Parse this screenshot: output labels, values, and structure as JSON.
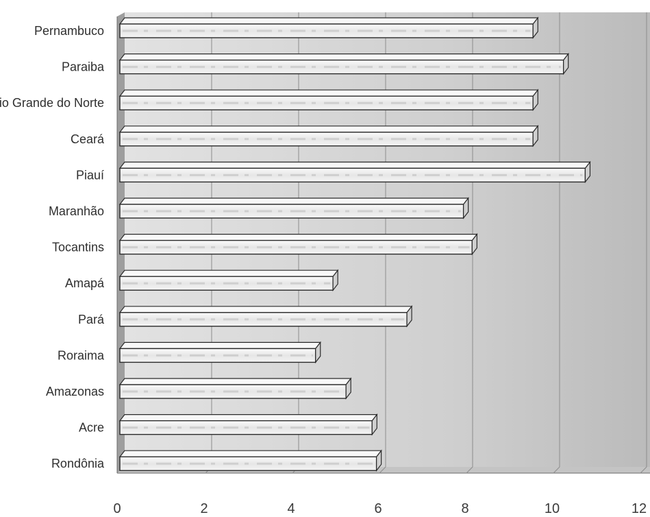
{
  "chart_data": {
    "type": "bar",
    "orientation": "horizontal",
    "style": "3d",
    "title": "",
    "xlabel": "",
    "ylabel": "",
    "xlim": [
      0,
      12
    ],
    "x_ticks": [
      "0",
      "2",
      "4",
      "6",
      "8",
      "10",
      "12"
    ],
    "grid": true,
    "legend": "none",
    "categories": [
      "Pernambuco",
      "Paraiba",
      "Rio Grande do Norte",
      "Ceará",
      "Piauí",
      "Maranhão",
      "Tocantins",
      "Amapá",
      "Pará",
      "Roraima",
      "Amazonas",
      "Acre",
      "Rondônia"
    ],
    "values": [
      9.5,
      10.2,
      9.5,
      9.5,
      10.7,
      7.9,
      8.1,
      4.9,
      6.6,
      4.5,
      5.2,
      5.8,
      5.9
    ],
    "colors": {
      "bar_front": "#efefef",
      "bar_top": "#f8f8f8",
      "bar_side": "#d0d0d0",
      "bar_edge": "#2a2a2a",
      "wall_light": "#d6d6d6",
      "wall_dark": "#b8b8b8",
      "gridline": "#8c8c8c",
      "text": "#2f2f2f"
    }
  }
}
